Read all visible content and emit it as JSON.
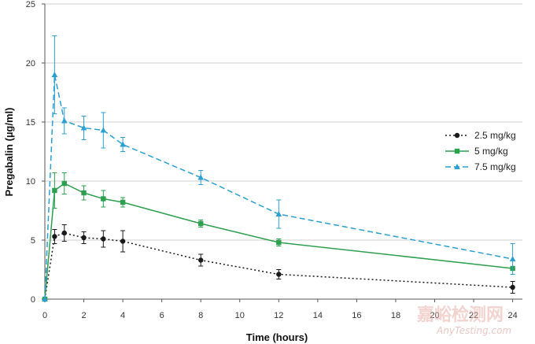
{
  "chart_data": {
    "type": "line",
    "xlabel": "Time (hours)",
    "ylabel": "Pregabalin (µg/ml)",
    "xlim": [
      0,
      24.5
    ],
    "ylim": [
      0,
      25
    ],
    "x_ticks": [
      0,
      2,
      4,
      6,
      8,
      10,
      12,
      14,
      16,
      18,
      20,
      22,
      24
    ],
    "y_ticks": [
      0,
      5,
      10,
      15,
      20,
      25
    ],
    "grid": "horizontal",
    "legend_position": "right",
    "series": [
      {
        "name": "2.5 mg/kg",
        "color": "#1a1a1a",
        "line_style": "dotted",
        "marker": "circle",
        "x": [
          0,
          0.5,
          1,
          2,
          3,
          4,
          8,
          12,
          24
        ],
        "y": [
          0,
          5.3,
          5.6,
          5.2,
          5.1,
          4.9,
          3.3,
          2.1,
          1.0
        ],
        "err": [
          0,
          0.6,
          0.7,
          0.5,
          0.7,
          0.9,
          0.5,
          0.4,
          0.5
        ]
      },
      {
        "name": "5 mg/kg",
        "color": "#2e9e4f",
        "line_style": "solid",
        "marker": "square",
        "x": [
          0,
          0.5,
          1,
          2,
          3,
          4,
          8,
          12,
          24
        ],
        "y": [
          0,
          9.2,
          9.8,
          9.0,
          8.5,
          8.2,
          6.4,
          4.8,
          2.6
        ],
        "err": [
          0,
          1.5,
          0.9,
          0.6,
          0.7,
          0.4,
          0.3,
          0.3,
          0.0
        ]
      },
      {
        "name": "7.5 mg/kg",
        "color": "#2a9fd0",
        "line_style": "dashed",
        "marker": "triangle",
        "x": [
          0,
          0.5,
          1,
          2,
          3,
          4,
          8,
          12,
          24
        ],
        "y": [
          0,
          19.0,
          15.1,
          14.5,
          14.3,
          13.1,
          10.3,
          7.2,
          3.4
        ],
        "err": [
          0,
          3.3,
          1.1,
          1.0,
          1.5,
          0.6,
          0.6,
          1.2,
          1.3
        ]
      }
    ]
  },
  "watermark": {
    "chinese": "嘉峪检测网",
    "english": "AnyTesting.com"
  }
}
